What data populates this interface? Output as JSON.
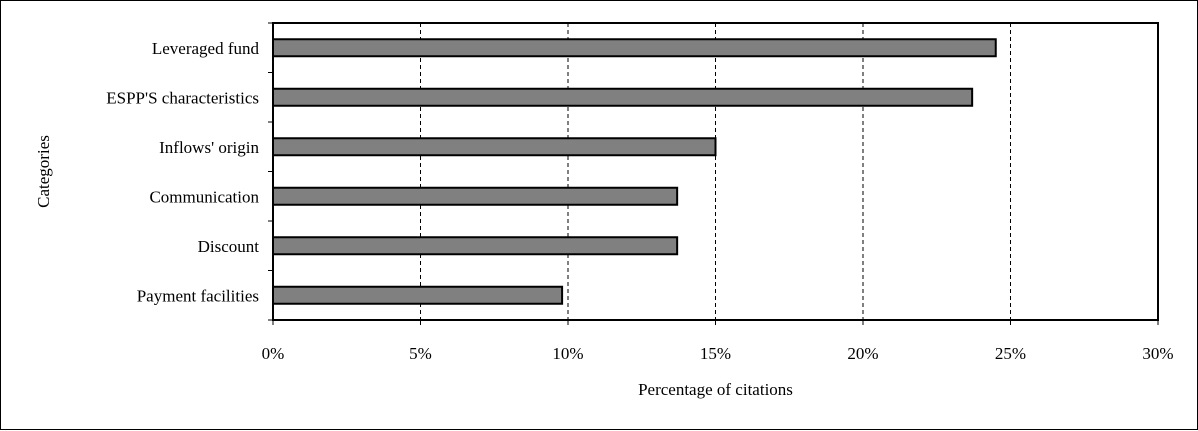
{
  "chart_data": {
    "type": "bar",
    "orientation": "horizontal",
    "categories": [
      "Leveraged fund",
      "ESPP'S characteristics",
      "Inflows' origin",
      "Communication",
      "Discount",
      "Payment facilities"
    ],
    "values": [
      24.5,
      23.7,
      15.0,
      13.7,
      13.7,
      9.8
    ],
    "xlabel": "Percentage of citations",
    "ylabel": "Categories",
    "xlim": [
      0,
      30
    ],
    "xticks": [
      0,
      5,
      10,
      15,
      20,
      25,
      30
    ],
    "xtick_labels": [
      "0%",
      "5%",
      "10%",
      "15%",
      "20%",
      "25%",
      "30%"
    ],
    "grid": "vertical dashed",
    "legend": "none",
    "bar_color": "#808080",
    "bar_edge_color": "#000000"
  }
}
